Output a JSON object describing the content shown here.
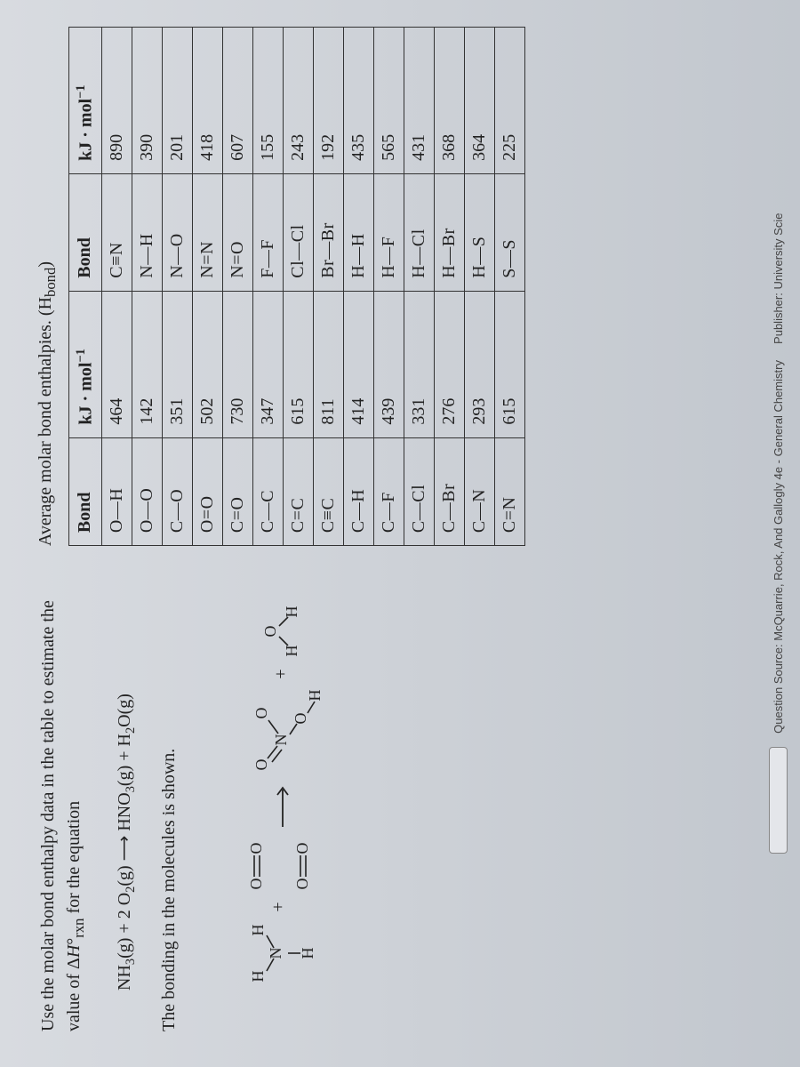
{
  "question": {
    "line1": "Use the molar bond enthalpy data in the table to estimate the",
    "line2_pre": "value of Δ",
    "line2_H": "H",
    "line2_sub": "rxn",
    "line2_deg": "°",
    "line2_post": " for the equation"
  },
  "equation": {
    "lhs1": "NH",
    "lhs1_sub": "3",
    "lhs1_state": "(g)",
    "plus1": " + 2 O",
    "lhs2_sub": "2",
    "lhs2_state": "(g)",
    "arrow": " ⟶ ",
    "rhs1": "HNO",
    "rhs1_sub": "3",
    "rhs1_state": "(g)",
    "plus2": " + H",
    "rhs2_sub": "2",
    "rhs2_state": "O(g)"
  },
  "caption2": "The bonding in the molecules is shown.",
  "right_title_pre": "Average molar bond enthalpies. (",
  "right_title_H": "H",
  "right_title_sub": "bond",
  "right_title_post": ")",
  "table": {
    "headers": {
      "bond": "Bond",
      "unit_pre": "kJ · mol",
      "unit_sup": "−1"
    },
    "rows": [
      {
        "b1": "O—H",
        "v1": 464,
        "b2": "C≡N",
        "v2": 890
      },
      {
        "b1": "O—O",
        "v1": 142,
        "b2": "N—H",
        "v2": 390
      },
      {
        "b1": "C—O",
        "v1": 351,
        "b2": "N—O",
        "v2": 201
      },
      {
        "b1": "O=O",
        "v1": 502,
        "b2": "N=N",
        "v2": 418
      },
      {
        "b1": "C=O",
        "v1": 730,
        "b2": "N=O",
        "v2": 607
      },
      {
        "b1": "C—C",
        "v1": 347,
        "b2": "F—F",
        "v2": 155
      },
      {
        "b1": "C=C",
        "v1": 615,
        "b2": "Cl—Cl",
        "v2": 243
      },
      {
        "b1": "C≡C",
        "v1": 811,
        "b2": "Br—Br",
        "v2": 192
      },
      {
        "b1": "C—H",
        "v1": 414,
        "b2": "H—H",
        "v2": 435
      },
      {
        "b1": "C—F",
        "v1": 439,
        "b2": "H—F",
        "v2": 565
      },
      {
        "b1": "C—Cl",
        "v1": 331,
        "b2": "H—Cl",
        "v2": 431
      },
      {
        "b1": "C—Br",
        "v1": 276,
        "b2": "H—Br",
        "v2": 368
      },
      {
        "b1": "C—N",
        "v1": 293,
        "b2": "H—S",
        "v2": 364
      },
      {
        "b1": "C=N",
        "v1": 615,
        "b2": "S—S",
        "v2": 225
      }
    ]
  },
  "diagram": {
    "font": "Times New Roman",
    "atom_fontsize": 18,
    "stroke": "#222",
    "stroke_width": 1.6,
    "labels": {
      "N": "N",
      "H": "H",
      "O": "O",
      "plus": "+",
      "arrow": "⟶"
    }
  },
  "source_bar": {
    "text": "Question Source: McQuarrie, Rock, And Gallogly 4e - General Chemistry",
    "right": "Publisher: University Scie"
  },
  "colors": {
    "page_bg_top": "#d8dbe0",
    "page_bg_bot": "#c2c7ce",
    "text": "#222222",
    "border": "#333333",
    "src_box_bg": "#e4e6ea",
    "src_box_border": "#888888"
  }
}
